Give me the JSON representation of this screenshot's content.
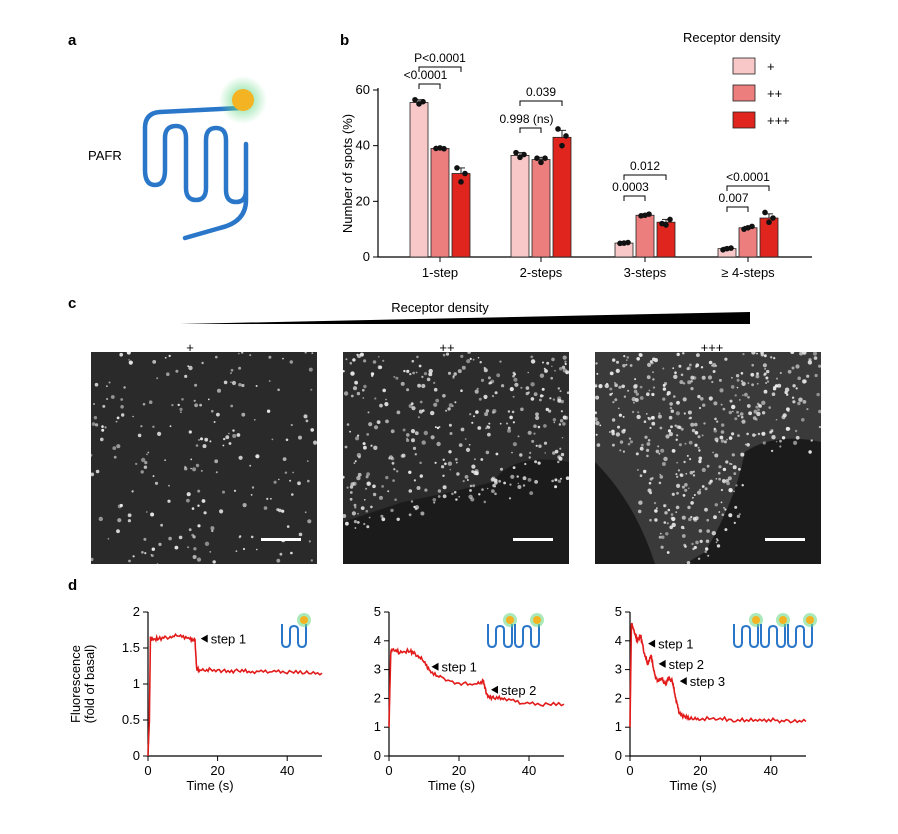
{
  "panel_labels": {
    "a": "a",
    "b": "b",
    "c": "c",
    "d": "d"
  },
  "panel_a": {
    "label": "PAFR"
  },
  "colors": {
    "plus": "#f8c8c8",
    "plus2": "#ec7e7e",
    "plus3": "#e0251f",
    "trace": "#e21b1b",
    "receptor": "#2a77c9",
    "ligand": "#f3b323",
    "glow": "#6fda8c"
  },
  "chart_data": [
    {
      "type": "bar",
      "title": "",
      "ylabel": "Number of spots (%)",
      "xlabel": "",
      "ylim": [
        0,
        60
      ],
      "yticks": [
        "0",
        "20",
        "40",
        "60"
      ],
      "categories": [
        "1-step",
        "2-steps",
        "3-steps",
        "≥ 4-steps"
      ],
      "legend_title": "Receptor density",
      "legend_position": "top-right",
      "series": [
        {
          "name": "+",
          "values": [
            55.5,
            36.5,
            5,
            3
          ],
          "errors": [
            1,
            1,
            0.5,
            0.5
          ],
          "points": [
            [
              56.5,
              55,
              55.8
            ],
            [
              37.5,
              35.8,
              36.8
            ],
            [
              4.9,
              5,
              5.2
            ],
            [
              2.6,
              3,
              3.2
            ]
          ]
        },
        {
          "name": "++",
          "values": [
            39,
            35,
            15,
            10.5
          ],
          "errors": [
            0.3,
            0.8,
            0.5,
            0.5
          ],
          "points": [
            [
              39,
              39.2,
              38.9
            ],
            [
              35.5,
              34,
              35.5
            ],
            [
              14.8,
              15,
              15.4
            ],
            [
              10,
              10.5,
              11
            ]
          ]
        },
        {
          "name": "+++",
          "values": [
            30,
            43,
            12.5,
            14
          ],
          "errors": [
            2,
            2.5,
            1,
            1.5
          ],
          "points": [
            [
              32,
              27,
              30
            ],
            [
              46,
              40,
              43.5
            ],
            [
              12,
              11.5,
              13.5
            ],
            [
              16,
              12.5,
              14
            ]
          ]
        }
      ],
      "annotations": [
        {
          "text": "<0.0001",
          "group": 0,
          "from": 0,
          "to": 1
        },
        {
          "text": "P<0.0001",
          "group": 0,
          "from": 0,
          "to": 2
        },
        {
          "text": "0.998 (ns)",
          "group": 1,
          "from": 0,
          "to": 1
        },
        {
          "text": "0.039",
          "group": 1,
          "from": 0,
          "to": 2
        },
        {
          "text": "0.0003",
          "group": 2,
          "from": 0,
          "to": 1
        },
        {
          "text": "0.012",
          "group": 2,
          "from": 0,
          "to": 2
        },
        {
          "text": "0.007",
          "group": 3,
          "from": 0,
          "to": 1
        },
        {
          "text": "<0.0001",
          "group": 3,
          "from": 0,
          "to": 2
        }
      ]
    },
    {
      "type": "line",
      "ylabel": "Fluorescence\n(fold of basal)",
      "xlabel": "Time (s)",
      "xlim": [
        0,
        50
      ],
      "ylim": [
        0,
        2
      ],
      "xticks": [
        "0",
        "20",
        "40"
      ],
      "yticks": [
        "0",
        "0.5",
        "1",
        "1.5",
        "2"
      ],
      "series": [
        {
          "x": [
            0,
            0.4,
            0.7,
            1,
            3,
            6,
            9,
            12,
            13.5,
            14,
            15,
            18,
            22,
            26,
            30,
            35,
            40,
            45,
            50
          ],
          "y": [
            0,
            0.5,
            1.65,
            1.62,
            1.63,
            1.65,
            1.68,
            1.63,
            1.6,
            1.2,
            1.19,
            1.2,
            1.18,
            1.18,
            1.17,
            1.18,
            1.17,
            1.16,
            1.15
          ]
        }
      ],
      "annotations": [
        {
          "text": "step 1",
          "x": 14,
          "y": 1.63
        }
      ]
    },
    {
      "type": "line",
      "xlabel": "Time (s)",
      "xlim": [
        0,
        50
      ],
      "ylim": [
        0,
        5
      ],
      "xticks": [
        "0",
        "20",
        "40"
      ],
      "yticks": [
        "0",
        "1",
        "2",
        "3",
        "4",
        "5"
      ],
      "series": [
        {
          "x": [
            0,
            0.5,
            1,
            3,
            6,
            8,
            10,
            12,
            15,
            20,
            25,
            27,
            28,
            30,
            33,
            38,
            44,
            50
          ],
          "y": [
            1,
            3.6,
            3.7,
            3.6,
            3.65,
            3.5,
            3.3,
            2.9,
            2.7,
            2.5,
            2.5,
            2.6,
            2.1,
            2.0,
            2.0,
            1.85,
            1.8,
            1.8
          ]
        }
      ],
      "annotations": [
        {
          "text": "step 1",
          "x": 11,
          "y": 3.1
        },
        {
          "text": "step 2",
          "x": 28,
          "y": 2.3
        }
      ]
    },
    {
      "type": "line",
      "xlabel": "Time (s)",
      "xlim": [
        0,
        50
      ],
      "ylim": [
        0,
        5
      ],
      "xticks": [
        "0",
        "20",
        "40"
      ],
      "yticks": [
        "0",
        "1",
        "2",
        "3",
        "4",
        "5"
      ],
      "series": [
        {
          "x": [
            0,
            0.4,
            1,
            2,
            3,
            4,
            5,
            6,
            7,
            8,
            9,
            10,
            11,
            12,
            13,
            14,
            15,
            17,
            20,
            25,
            30,
            35,
            40,
            45,
            50
          ],
          "y": [
            1,
            4.6,
            4.4,
            4.0,
            4.2,
            3.6,
            3.2,
            3.5,
            2.8,
            2.6,
            2.7,
            2.5,
            2.7,
            2.6,
            2.0,
            1.5,
            1.4,
            1.3,
            1.3,
            1.3,
            1.25,
            1.25,
            1.25,
            1.2,
            1.2
          ]
        }
      ],
      "annotations": [
        {
          "text": "step 1",
          "x": 4,
          "y": 3.9
        },
        {
          "text": "step 2",
          "x": 7,
          "y": 3.2
        },
        {
          "text": "step 3",
          "x": 13,
          "y": 2.6
        }
      ]
    }
  ],
  "panel_c": {
    "title": "Receptor density",
    "labels": [
      "+",
      "++",
      "+++"
    ]
  }
}
